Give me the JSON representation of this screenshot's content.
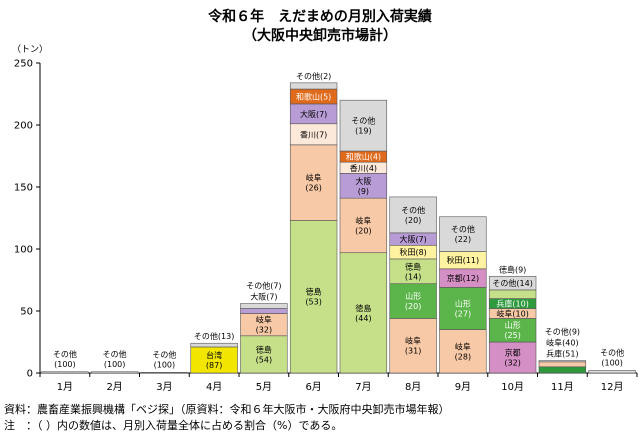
{
  "title_line1": "令和６年　えだまめの月別入荷実績",
  "title_line2": "（大阪中央卸売市場計）",
  "note_source": "資料：農畜産業振興機構「ベジ探」（原資料：令和６年大阪市・大阪府中央卸売市場年報）",
  "note_remark": "注　：（ ）内の数値は、月別入荷量全体に占める割合（%）である。",
  "colors": {
    "台湾": "#f2e600",
    "徳島": "#c6e08a",
    "岐阜": "#f7c9a6",
    "山形": "#5cb54a",
    "京都": "#d48fc4",
    "兵庫": "#2e9a3e",
    "秋田": "#fff2a0",
    "大阪": "#b89cd6",
    "香川": "#fde9d9",
    "和歌山": "#e06a1c",
    "その他": "#d9d9d9"
  },
  "chart_data": {
    "type": "bar",
    "stacked": true,
    "unit": "（トン）",
    "ylim": [
      0,
      250
    ],
    "yticks": [
      0,
      50,
      100,
      150,
      200,
      250
    ],
    "categories": [
      "1月",
      "2月",
      "3月",
      "4月",
      "5月",
      "6月",
      "7月",
      "8月",
      "9月",
      "10月",
      "11月",
      "12月"
    ],
    "months": [
      {
        "segments": [
          {
            "name": "その他",
            "value": 1,
            "pct": 100
          }
        ]
      },
      {
        "segments": [
          {
            "name": "その他",
            "value": 1,
            "pct": 100
          }
        ]
      },
      {
        "segments": [
          {
            "name": "その他",
            "value": 0.5,
            "pct": 100
          }
        ]
      },
      {
        "segments": [
          {
            "name": "台湾",
            "value": 21,
            "pct": 87
          },
          {
            "name": "その他",
            "value": 3,
            "pct": 13
          }
        ]
      },
      {
        "segments": [
          {
            "name": "徳島",
            "value": 30,
            "pct": 54
          },
          {
            "name": "岐阜",
            "value": 18,
            "pct": 32
          },
          {
            "name": "大阪",
            "value": 4,
            "pct": 7
          },
          {
            "name": "その他",
            "value": 4,
            "pct": 7
          }
        ]
      },
      {
        "segments": [
          {
            "name": "徳島",
            "value": 123,
            "pct": 53
          },
          {
            "name": "岐阜",
            "value": 61,
            "pct": 26
          },
          {
            "name": "香川",
            "value": 17,
            "pct": 7
          },
          {
            "name": "大阪",
            "value": 16,
            "pct": 7
          },
          {
            "name": "和歌山",
            "value": 12,
            "pct": 5
          },
          {
            "name": "その他",
            "value": 5,
            "pct": 2
          }
        ]
      },
      {
        "segments": [
          {
            "name": "徳島",
            "value": 97,
            "pct": 44
          },
          {
            "name": "岐阜",
            "value": 44,
            "pct": 20
          },
          {
            "name": "大阪",
            "value": 20,
            "pct": 9
          },
          {
            "name": "香川",
            "value": 9,
            "pct": 4
          },
          {
            "name": "和歌山",
            "value": 9,
            "pct": 4
          },
          {
            "name": "その他",
            "value": 41,
            "pct": 19
          }
        ]
      },
      {
        "segments": [
          {
            "name": "岐阜",
            "value": 44,
            "pct": 31
          },
          {
            "name": "山形",
            "value": 28,
            "pct": 20
          },
          {
            "name": "徳島",
            "value": 20,
            "pct": 14
          },
          {
            "name": "秋田",
            "value": 11,
            "pct": 8
          },
          {
            "name": "大阪",
            "value": 10,
            "pct": 7
          },
          {
            "name": "その他",
            "value": 29,
            "pct": 20
          }
        ]
      },
      {
        "segments": [
          {
            "name": "岐阜",
            "value": 35,
            "pct": 28
          },
          {
            "name": "山形",
            "value": 34,
            "pct": 27
          },
          {
            "name": "京都",
            "value": 15,
            "pct": 12
          },
          {
            "name": "秋田",
            "value": 14,
            "pct": 11
          },
          {
            "name": "その他",
            "value": 28,
            "pct": 22
          }
        ]
      },
      {
        "segments": [
          {
            "name": "京都",
            "value": 25,
            "pct": 32
          },
          {
            "name": "山形",
            "value": 19,
            "pct": 25
          },
          {
            "name": "岐阜",
            "value": 8,
            "pct": 10
          },
          {
            "name": "兵庫",
            "value": 8,
            "pct": 10
          },
          {
            "name": "徳島",
            "value": 7,
            "pct": 9
          },
          {
            "name": "その他",
            "value": 11,
            "pct": 14
          }
        ]
      },
      {
        "segments": [
          {
            "name": "兵庫",
            "value": 5,
            "pct": 51
          },
          {
            "name": "岐阜",
            "value": 4,
            "pct": 40
          },
          {
            "name": "その他",
            "value": 1,
            "pct": 9
          }
        ]
      },
      {
        "segments": [
          {
            "name": "その他",
            "value": 2,
            "pct": 100
          }
        ]
      }
    ]
  }
}
